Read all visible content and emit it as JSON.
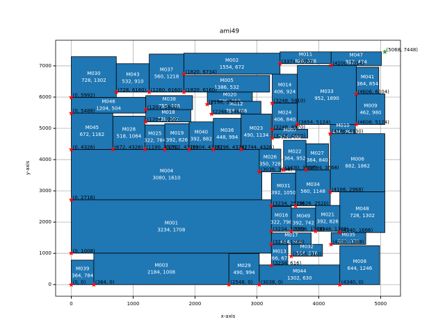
{
  "chart_data": {
    "type": "floorplan",
    "title": "ami49",
    "x_label": "x-axis",
    "y_label": "y-axis",
    "xlim": [
      -253,
      5321
    ],
    "ylim": [
      -372,
      7820
    ],
    "xticks": [
      0,
      1000,
      2000,
      3000,
      4000,
      5000
    ],
    "yticks": [
      0,
      1000,
      2000,
      3000,
      4000,
      5000,
      6000,
      7000
    ],
    "grid": true,
    "color": "#1f77b4",
    "corner_color": "#ff0000",
    "extreme_color": "#2ca02c",
    "blocks": [
      {
        "name": "M039",
        "size_label": "364, 784",
        "w": 364,
        "h": 784,
        "x": 0,
        "y": 0,
        "corner_label": "(0, 0)"
      },
      {
        "name": "M003",
        "size_label": "2184, 1008",
        "w": 2184,
        "h": 1008,
        "x": 364,
        "y": 0,
        "corner_label": "(364, 0)"
      },
      {
        "name": "M001",
        "size_label": "3234, 1708",
        "w": 3234,
        "h": 1708,
        "x": 0,
        "y": 1008,
        "corner_label": "(0, 1008)"
      },
      {
        "name": "M004",
        "size_label": "3080, 1610",
        "w": 3080,
        "h": 1610,
        "x": 0,
        "y": 2716,
        "corner_label": "(0, 2716)"
      },
      {
        "name": "M045",
        "size_label": "672, 1162",
        "w": 672,
        "h": 1162,
        "x": 0,
        "y": 4326,
        "corner_label": "(0, 4326)"
      },
      {
        "name": "M046",
        "size_label": "1204, 504",
        "w": 1204,
        "h": 504,
        "x": 0,
        "y": 5488,
        "corner_label": "(0, 5488)"
      },
      {
        "name": "M030",
        "size_label": "728, 1302",
        "w": 728,
        "h": 1302,
        "x": 0,
        "y": 5992,
        "corner_label": "(0, 5992)"
      },
      {
        "name": "M028",
        "size_label": "518, 1064",
        "w": 518,
        "h": 1064,
        "x": 672,
        "y": 4326,
        "corner_label": "(672, 4326)"
      },
      {
        "name": "M043",
        "size_label": "532, 910",
        "w": 532,
        "h": 910,
        "x": 728,
        "y": 6160,
        "corner_label": "(728, 6160)"
      },
      {
        "name": "M025",
        "size_label": "322, 784",
        "w": 322,
        "h": 784,
        "x": 1190,
        "y": 4326,
        "corner_label": "(1190, 4326)"
      },
      {
        "name": "M019",
        "size_label": "392, 826",
        "w": 392,
        "h": 826,
        "x": 1512,
        "y": 4326,
        "corner_label": "(1512, 4326)"
      },
      {
        "name": "M040",
        "size_label": "392, 882",
        "w": 392,
        "h": 882,
        "x": 1904,
        "y": 4326,
        "corner_label": "(1904, 4326)"
      },
      {
        "name": "M036",
        "size_label": "448, 994",
        "w": 448,
        "h": 994,
        "x": 2296,
        "y": 4326,
        "corner_label": "(2296, 4326)"
      },
      {
        "name": "M023",
        "size_label": "490, 1134",
        "w": 490,
        "h": 1134,
        "x": 2744,
        "y": 4326,
        "corner_label": "(2744, 4326)"
      },
      {
        "name": "M018",
        "size_label": "728, 392",
        "w": 728,
        "h": 392,
        "x": 1204,
        "y": 5208,
        "corner_label": "(1204, 5208)"
      },
      {
        "name": "M038",
        "size_label": "756, 448",
        "w": 756,
        "h": 448,
        "x": 1204,
        "y": 5600,
        "corner_label": "(1204, 5600)"
      },
      {
        "name": "M037",
        "size_label": "560, 1218",
        "w": 560,
        "h": 1218,
        "x": 1260,
        "y": 6160,
        "corner_label": "(1260, 6160)"
      },
      {
        "name": "M002",
        "size_label": "1554, 672",
        "w": 1554,
        "h": 672,
        "x": 1820,
        "y": 6734,
        "corner_label": "(1820, 6734)"
      },
      {
        "name": "M005",
        "size_label": "1386, 532",
        "w": 1386,
        "h": 532,
        "x": 1820,
        "y": 6160,
        "corner_label": "(1820, 6160)"
      },
      {
        "name": "M020",
        "size_label": "728, 392",
        "w": 728,
        "h": 392,
        "x": 2198,
        "y": 5768,
        "corner_label": "(2198, 5768)"
      },
      {
        "name": "M012",
        "size_label": "798, 406",
        "w": 798,
        "h": 406,
        "x": 2268,
        "y": 5460,
        "corner_label": "(2268, 5460)"
      },
      {
        "name": "M014",
        "size_label": "406, 924",
        "w": 406,
        "h": 924,
        "x": 3248,
        "y": 5810,
        "corner_label": "(3248, 5810)"
      },
      {
        "name": "M024",
        "size_label": "406, 840",
        "w": 406,
        "h": 840,
        "x": 3248,
        "y": 4970,
        "corner_label": "(3248, 4970)"
      },
      {
        "name": "M011",
        "size_label": "826, 378",
        "w": 826,
        "h": 378,
        "x": 3374,
        "y": 7070,
        "corner_label": "(3374, 7070)"
      },
      {
        "name": "M047",
        "size_label": "812, 434",
        "w": 812,
        "h": 434,
        "x": 4200,
        "y": 7014,
        "corner_label": "(4200, 7014)"
      },
      {
        "name": "M041",
        "size_label": "364, 854",
        "w": 364,
        "h": 854,
        "x": 4606,
        "y": 6104,
        "corner_label": "(4606, 6104)"
      },
      {
        "name": "M033",
        "size_label": "952, 1890",
        "w": 952,
        "h": 1890,
        "x": 3654,
        "y": 5124,
        "corner_label": "(3654, 5124)"
      },
      {
        "name": "M009",
        "size_label": "462, 980",
        "w": 462,
        "h": 980,
        "x": 4606,
        "y": 5124,
        "corner_label": "(4606, 5124)"
      },
      {
        "name": "M010",
        "size_label": "406, 294",
        "w": 406,
        "h": 294,
        "x": 4186,
        "y": 4830,
        "corner_label": "(4186, 4830)"
      },
      {
        "name": "M007",
        "size_label": "574, 280",
        "w": 574,
        "h": 280,
        "x": 3248,
        "y": 4690,
        "corner_label": "(3248, 4690)"
      },
      {
        "name": "M026",
        "size_label": "350, 728",
        "w": 350,
        "h": 728,
        "x": 3038,
        "y": 3608,
        "corner_label": "(3038, 3608)"
      },
      {
        "name": "M022",
        "size_label": "364, 952",
        "w": 364,
        "h": 952,
        "x": 3430,
        "y": 3668,
        "corner_label": "(3430, 3668)"
      },
      {
        "name": "M027",
        "size_label": "364, 840",
        "w": 364,
        "h": 840,
        "x": 3794,
        "y": 3668,
        "corner_label": "(3794, 3668)"
      },
      {
        "name": "M006",
        "size_label": "882, 1862",
        "w": 882,
        "h": 1862,
        "x": 4186,
        "y": 2968,
        "corner_label": "(4186, 2968)"
      },
      {
        "name": "M031",
        "size_label": "392, 1050",
        "w": 392,
        "h": 1050,
        "x": 3234,
        "y": 2520,
        "corner_label": "(3234, 2520)"
      },
      {
        "name": "M034",
        "size_label": "560, 1148",
        "w": 560,
        "h": 1148,
        "x": 3626,
        "y": 2520,
        "corner_label": "(3626, 2520)"
      },
      {
        "name": "M048",
        "size_label": "728, 1302",
        "w": 728,
        "h": 1302,
        "x": 4340,
        "y": 1666,
        "corner_label": "(4340, 1666)"
      },
      {
        "name": "M016",
        "size_label": "322, 798",
        "w": 322,
        "h": 798,
        "x": 3234,
        "y": 1708,
        "corner_label": "(3234, 1708)"
      },
      {
        "name": "M049",
        "size_label": "392, 742",
        "w": 392,
        "h": 742,
        "x": 3556,
        "y": 1708,
        "corner_label": "(3556, 1708)"
      },
      {
        "name": "M021",
        "size_label": "392, 826",
        "w": 392,
        "h": 826,
        "x": 3948,
        "y": 1708,
        "corner_label": "(3948, 1708)"
      },
      {
        "name": "M035",
        "size_label": "560, 378",
        "w": 560,
        "h": 378,
        "x": 4200,
        "y": 1288,
        "corner_label": "(4200, 1288)"
      },
      {
        "name": "M017",
        "size_label": "644, 364",
        "w": 644,
        "h": 364,
        "x": 3234,
        "y": 1288,
        "corner_label": "(3234, 1288)"
      },
      {
        "name": "M032",
        "size_label": "504, 378",
        "w": 504,
        "h": 378,
        "x": 3556,
        "y": 910,
        "corner_label": "(3556, 910)"
      },
      {
        "name": "M013",
        "size_label": "266, 672",
        "w": 266,
        "h": 672,
        "x": 3234,
        "y": 616,
        "corner_label": "(3234, 616)"
      },
      {
        "name": "M029",
        "size_label": "490, 994",
        "w": 490,
        "h": 994,
        "x": 2548,
        "y": 0,
        "corner_label": "(2548, 0)"
      },
      {
        "name": "M044",
        "size_label": "1302, 630",
        "w": 1302,
        "h": 630,
        "x": 3038,
        "y": 0,
        "corner_label": "(3038, 0)"
      },
      {
        "name": "M008",
        "size_label": "644, 1246",
        "w": 644,
        "h": 1246,
        "x": 4340,
        "y": 0,
        "corner_label": "(4340, 0)"
      }
    ],
    "extreme": {
      "label": "(5068, 7448)",
      "x": 5068,
      "y": 7448
    }
  }
}
